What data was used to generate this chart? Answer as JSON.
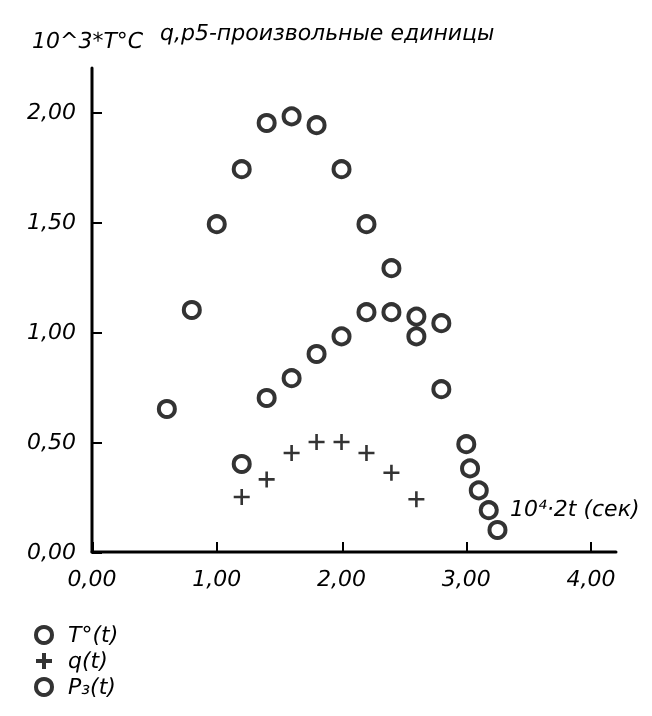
{
  "chart_data": {
    "type": "scatter",
    "title": "q,p5-произвольные единицы",
    "ylabel": "10^3*T°C",
    "xlabel": "10⁴·2t (сек)",
    "xlim": [
      0,
      4.2
    ],
    "xticks": [
      {
        "value": 0,
        "label": "0,00"
      },
      {
        "value": 1,
        "label": "1,00"
      },
      {
        "value": 2,
        "label": "2,00"
      },
      {
        "value": 3,
        "label": "3,00"
      },
      {
        "value": 4,
        "label": "4,00"
      }
    ],
    "ylim": [
      0,
      2.2
    ],
    "yticks": [
      {
        "value": 0,
        "label": "0,00"
      },
      {
        "value": 0.5,
        "label": "0,50"
      },
      {
        "value": 1,
        "label": "1,00"
      },
      {
        "value": 1.5,
        "label": "1,50"
      },
      {
        "value": 2,
        "label": "2,00"
      }
    ],
    "grid": false,
    "legend": "bottom left",
    "series": [
      {
        "name": "T°(t)",
        "color": "#000000",
        "marker": "circle",
        "x": [
          0.6,
          0.8,
          1.0,
          1.2,
          1.4,
          1.6,
          1.8,
          2.0,
          2.2,
          2.4,
          2.6,
          2.8,
          3.0
        ],
        "values": [
          0.65,
          1.1,
          1.49,
          1.74,
          1.95,
          1.98,
          1.94,
          1.74,
          1.49,
          1.29,
          0.98,
          0.74,
          0.49
        ]
      },
      {
        "color": "#000000",
        "marker": "circle",
        "x": [
          1.2,
          1.4,
          1.6,
          1.8,
          2.0,
          2.2,
          2.4,
          2.6,
          2.8
        ],
        "values": [
          0.4,
          0.7,
          0.79,
          0.9,
          0.98,
          1.09,
          1.09,
          1.07,
          1.04
        ]
      },
      {
        "name": "q(t)",
        "color": "#000000",
        "marker": "cross",
        "x": [
          1.2,
          1.4,
          1.6,
          1.8,
          2.0,
          2.2,
          2.4,
          2.6
        ],
        "values": [
          0.25,
          0.33,
          0.45,
          0.5,
          0.5,
          0.45,
          0.36,
          0.24
        ]
      },
      {
        "name": "P₃(t)",
        "color": "#000000",
        "marker": "circle",
        "x": [
          3.03,
          3.1,
          3.18,
          3.25
        ],
        "values": [
          0.38,
          0.28,
          0.19,
          0.1
        ]
      }
    ]
  }
}
